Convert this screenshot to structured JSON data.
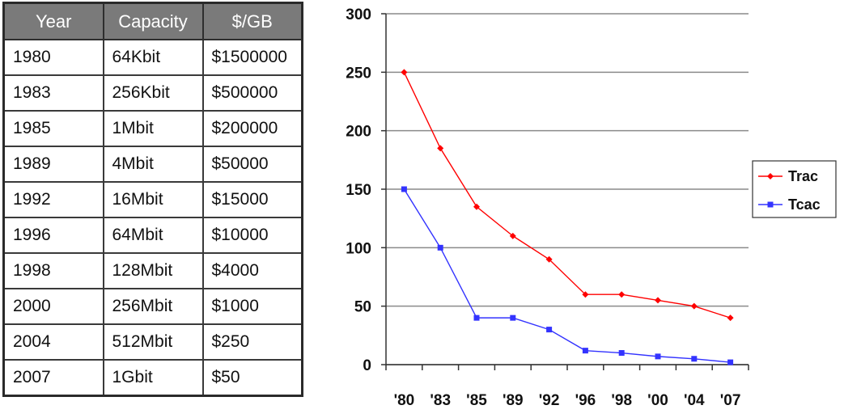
{
  "table": {
    "headers": [
      "Year",
      "Capacity",
      "$/GB"
    ],
    "rows": [
      [
        "1980",
        "64Kbit",
        "$1500000"
      ],
      [
        "1983",
        "256Kbit",
        "$500000"
      ],
      [
        "1985",
        "1Mbit",
        "$200000"
      ],
      [
        "1989",
        "4Mbit",
        "$50000"
      ],
      [
        "1992",
        "16Mbit",
        "$15000"
      ],
      [
        "1996",
        "64Mbit",
        "$10000"
      ],
      [
        "1998",
        "128Mbit",
        "$4000"
      ],
      [
        "2000",
        "256Mbit",
        "$1000"
      ],
      [
        "2004",
        "512Mbit",
        "$250"
      ],
      [
        "2007",
        "1Gbit",
        "$50"
      ]
    ]
  },
  "chart_data": {
    "type": "line",
    "categories": [
      "'80",
      "'83",
      "'85",
      "'89",
      "'92",
      "'96",
      "'98",
      "'00",
      "'04",
      "'07"
    ],
    "series": [
      {
        "name": "Trac",
        "color": "#ff0000",
        "marker": "diamond",
        "values": [
          250,
          185,
          135,
          110,
          90,
          60,
          60,
          55,
          50,
          40
        ]
      },
      {
        "name": "Tcac",
        "color": "#3333ff",
        "marker": "square",
        "values": [
          150,
          100,
          40,
          40,
          30,
          12,
          10,
          7,
          5,
          2
        ]
      }
    ],
    "y_ticks": [
      "0",
      "50",
      "100",
      "150",
      "200",
      "250",
      "300"
    ],
    "ylim": [
      0,
      300
    ],
    "grid": true,
    "legend_position": "right"
  }
}
